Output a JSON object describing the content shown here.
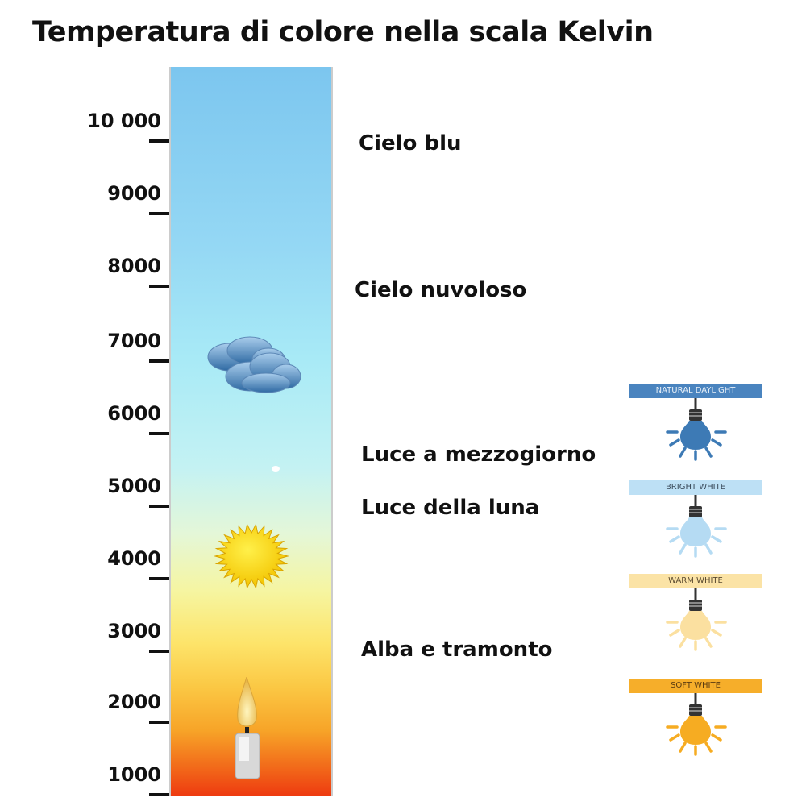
{
  "title": "Temperatura di colore nella scala Kelvin",
  "scale": {
    "ticks": [
      "10 000",
      "9000",
      "8000",
      "7000",
      "6000",
      "5000",
      "4000",
      "3000",
      "2000",
      "1000"
    ]
  },
  "categories": [
    {
      "label": "Cielo blu"
    },
    {
      "label": "Cielo nuvoloso"
    },
    {
      "label": "Luce a mezzogiorno"
    },
    {
      "label": "Luce della luna"
    },
    {
      "label": "Alba e tramonto"
    }
  ],
  "icons": [
    "cloud-icon",
    "sun-icon",
    "candle-icon"
  ],
  "bulbs": [
    {
      "label": "NATURAL DAYLIGHT",
      "color": "#3d7ab5",
      "label_bg": "#4a84bf",
      "label_color": "#e8f0f8"
    },
    {
      "label": "BRIGHT WHITE",
      "color": "#b5dbf3",
      "label_bg": "#bde0f5",
      "label_color": "#3a4a5a"
    },
    {
      "label": "WARM WHITE",
      "color": "#fbe0a0",
      "label_bg": "#fbe3a6",
      "label_color": "#5a4a30"
    },
    {
      "label": "SOFT WHITE",
      "color": "#f6ac22",
      "label_bg": "#f6ae2a",
      "label_color": "#5a3a10"
    }
  ]
}
